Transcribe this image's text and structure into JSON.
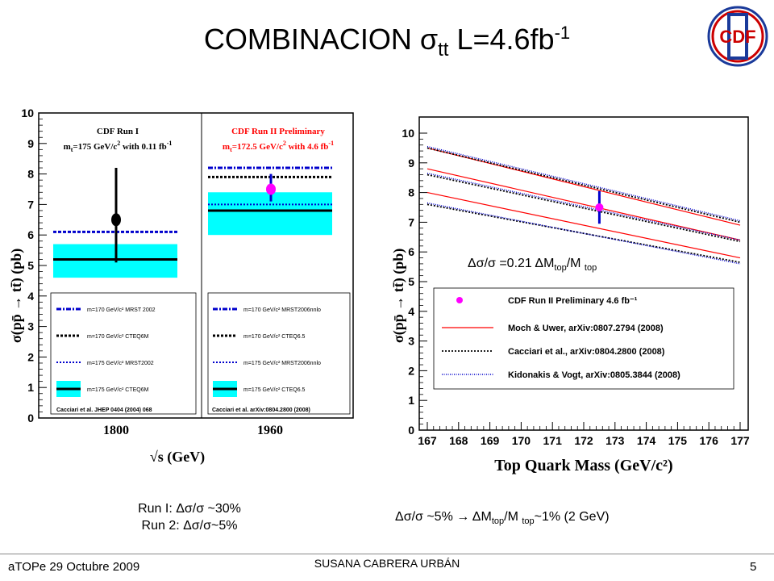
{
  "slide": {
    "title_main": "COMBINACION σ",
    "title_sub": "tt",
    "title_rest": " L=4.6fb",
    "title_sup": "-1",
    "logo_text": "CDF",
    "delta_text_a": "Δσ/σ =0.21 ΔM",
    "delta_sub_a": "top",
    "delta_text_b": "/M ",
    "delta_sub_b": "top",
    "caption_left_line1": "Run I: Δσ/σ ~30%",
    "caption_left_line2": "Run 2: Δσ/σ~5%",
    "caption_right_a": "Δσ/σ ~5%  → ΔM",
    "caption_right_sub_a": "top",
    "caption_right_b": "/M ",
    "caption_right_sub_b": "top",
    "caption_right_c": "~1% (2 GeV)",
    "footer_left": "aTOPe 29 Octubre 2009",
    "footer_center": "SUSANA CABRERA URBÁN",
    "footer_right": "5",
    "colors": {
      "cyan": "#00ffff",
      "magenta": "#ff00ff",
      "red": "#ff0000",
      "blue": "#0000cc",
      "logo_red": "#cc0000",
      "logo_blue": "#1a3a9a"
    }
  },
  "chart_data": [
    {
      "type": "scatter",
      "ylabel": "σ(pp̄ → tt̄) (pb)",
      "xlabel": "√s (GeV)",
      "categories": [
        "1800",
        "1960"
      ],
      "yticks": [
        "0",
        "1",
        "2",
        "3",
        "4",
        "5",
        "6",
        "7",
        "8",
        "9",
        "10"
      ],
      "ylim": [
        0,
        10
      ],
      "panels": [
        {
          "title": "CDF Run I",
          "subtitle_a": "m",
          "subtitle_sub": "t",
          "subtitle_b": "=175 GeV/c",
          "subtitle_sup": "2",
          "subtitle_c": " with 0.11 fb",
          "subtitle_sup2": "-1",
          "measurement": 6.5,
          "err_low": 5.1,
          "err_high": 8.2,
          "band": [
            4.6,
            5.7
          ],
          "cteq": 5.2,
          "mrst": 6.1
        },
        {
          "title": "CDF Run II Preliminary",
          "subtitle_a": "m",
          "subtitle_sub": "t",
          "subtitle_b": "=172.5 GeV/c",
          "subtitle_sup": "2",
          "subtitle_c": " with 4.6 fb",
          "subtitle_sup2": "-1",
          "measurement": 7.5,
          "err_low": 7.1,
          "err_high": 8.0,
          "band": [
            6.0,
            7.4
          ],
          "cteq": 6.8,
          "mrst170": 8.2,
          "cteq170": 7.9,
          "mrst175": 7.0
        }
      ],
      "legend_left": [
        "m=170 GeV/c² MRST 2002",
        "m=170 GeV/c² CTEQ6M",
        "m=175 GeV/c² MRST2002",
        "m=175 GeV/c² CTEQ6M"
      ],
      "legend_left_ref": "Cacciari et al.  JHEP 0404 (2004) 068",
      "legend_right": [
        "m=170 GeV/c² MRST2006nnlo",
        "m=170 GeV/c² CTEQ6.5",
        "m=175 GeV/c² MRST2006nnlo",
        "m=175 GeV/c² CTEQ6.5"
      ],
      "legend_right_ref": "Cacciari et al. arXiv:0804.2800 (2008)"
    },
    {
      "type": "line",
      "xlabel": "Top Quark Mass (GeV/c²)",
      "ylabel": "σ(pp̄ → tt̄) (pb)",
      "x": [
        167,
        177
      ],
      "xticks": [
        "167",
        "168",
        "169",
        "170",
        "171",
        "172",
        "173",
        "174",
        "175",
        "176",
        "177"
      ],
      "yticks": [
        "0",
        "1",
        "2",
        "3",
        "4",
        "5",
        "6",
        "7",
        "8",
        "9",
        "10"
      ],
      "ylim": [
        0,
        10
      ],
      "measurement": {
        "x": 172.5,
        "y": 7.5,
        "err_low": 6.95,
        "err_high": 8.05
      },
      "series": [
        {
          "name": "Moch & Uwer, arXiv:0807.2794 (2008)",
          "style": "red",
          "values": [
            [
              9.5,
              6.9
            ],
            [
              8.8,
              6.4
            ],
            [
              8.0,
              5.8
            ]
          ]
        },
        {
          "name": "Cacciari et al., arXiv:0804.2800 (2008)",
          "style": "black-dotted",
          "values": [
            [
              9.5,
              7.0
            ],
            [
              8.6,
              6.35
            ],
            [
              7.6,
              5.65
            ]
          ]
        },
        {
          "name": "Kidonakis & Vogt, arXiv:0805.3844 (2008)",
          "style": "blue-dotted",
          "values": [
            [
              9.55,
              7.05
            ],
            [
              8.65,
              6.4
            ],
            [
              7.65,
              5.6
            ]
          ]
        }
      ],
      "legend_marker_label": "CDF Run II Preliminary 4.6 fb⁻¹"
    }
  ]
}
